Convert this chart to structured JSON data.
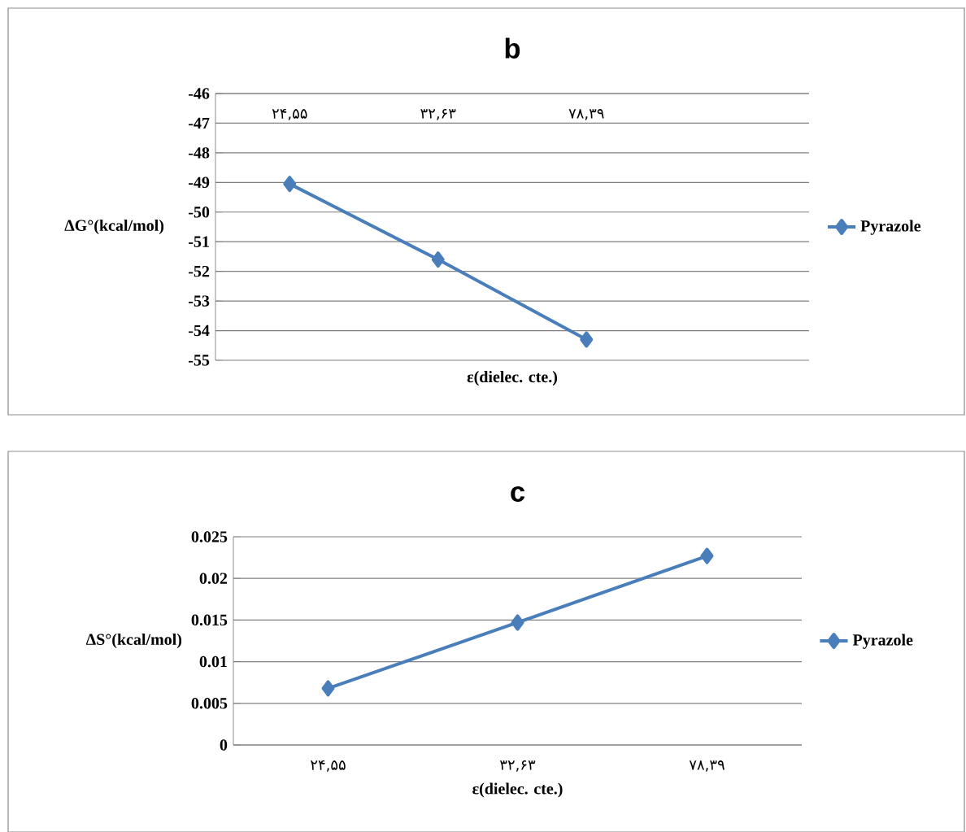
{
  "chart_data": [
    {
      "type": "line",
      "title": "b",
      "xlabel": "ε(dielec. cte.)",
      "ylabel": "ΔG°(kcal/mol)",
      "categories": [
        "۲۴,۵۵",
        "۳۲,۶۳",
        "۷۸,۳۹",
        null
      ],
      "series": [
        {
          "name": "Pyrazole",
          "color": "#4a7ebb",
          "values": [
            -49.05,
            -51.6,
            -54.3,
            null
          ]
        }
      ],
      "ylim": [
        -55,
        -46
      ],
      "yticks": [
        -55,
        -54,
        -53,
        -52,
        -51,
        -50,
        -49,
        -48,
        -47,
        -46
      ],
      "grid": "y",
      "legend": "right",
      "marker": "diamond",
      "line_style": "solid"
    },
    {
      "type": "line",
      "title": "c",
      "xlabel": "ε(dielec. cte.)",
      "ylabel": "ΔS°(kcal/mol)",
      "categories": [
        "۲۴,۵۵",
        "۳۲,۶۳",
        "۷۸,۳۹"
      ],
      "series": [
        {
          "name": "Pyrazole",
          "color": "#4a7ebb",
          "values": [
            0.0068,
            0.0147,
            0.0227
          ]
        }
      ],
      "ylim": [
        0,
        0.025
      ],
      "yticks": [
        0,
        0.005,
        0.01,
        0.015,
        0.02,
        0.025
      ],
      "grid": "y",
      "legend": "right",
      "marker": "diamond",
      "line_style": "solid"
    }
  ]
}
